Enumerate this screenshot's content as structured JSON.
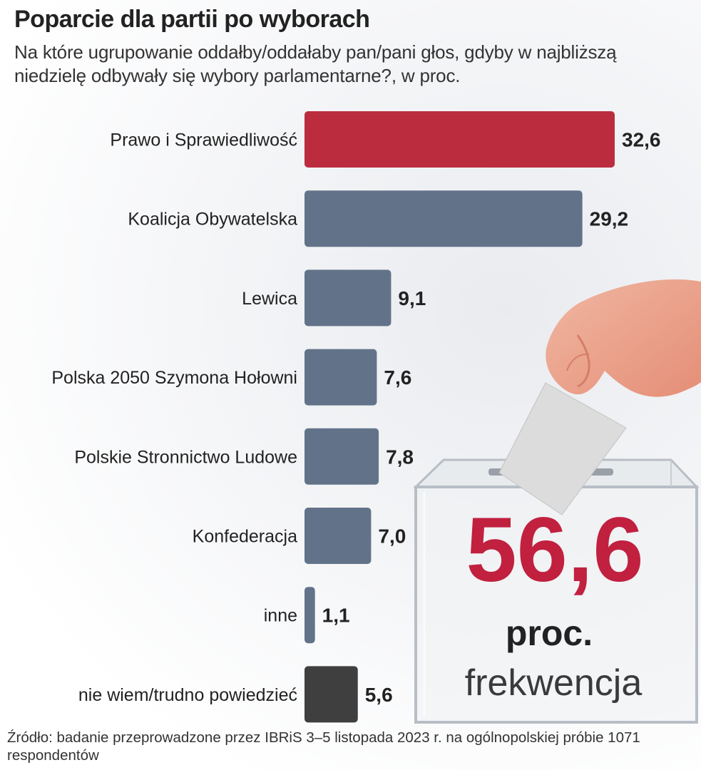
{
  "header": {
    "title": "Poparcie dla partii po wyborach",
    "subtitle": "Na które ugrupowanie oddałby/oddałaby pan/pani głos, gdyby w najbliższą niedzielę odbywały się wybory parlamentarne?, w proc."
  },
  "chart_data": {
    "type": "bar",
    "orientation": "horizontal",
    "categories": [
      "Prawo i Sprawiedliwość",
      "Koalicja Obywatelska",
      "Lewica",
      "Polska 2050 Szymona Hołowni",
      "Polskie Stronnictwo Ludowe",
      "Konfederacja",
      "inne",
      "nie wiem/trudno powiedzieć"
    ],
    "values": [
      32.6,
      29.2,
      9.1,
      7.6,
      7.8,
      7.0,
      1.1,
      5.6
    ],
    "value_labels": [
      "32,6",
      "29,2",
      "9,1",
      "7,6",
      "7,8",
      "7,0",
      "1,1",
      "5,6"
    ],
    "colors": [
      "#bb2d3e",
      "#627389",
      "#627389",
      "#627389",
      "#627389",
      "#627389",
      "#627389",
      "#3f3f3f"
    ],
    "xlim": [
      0,
      32.6
    ]
  },
  "highlight": {
    "value": "56,6",
    "unit": "proc.",
    "caption": "frekwencja",
    "color": "#c1203f"
  },
  "icons": [
    "ballot-box-icon",
    "voting-hand-icon"
  ],
  "source": "Źródło: badanie przeprowadzone przez IBRiS 3–5 listopada 2023 r. na ogólnopolskiej próbie 1071 respondentów"
}
